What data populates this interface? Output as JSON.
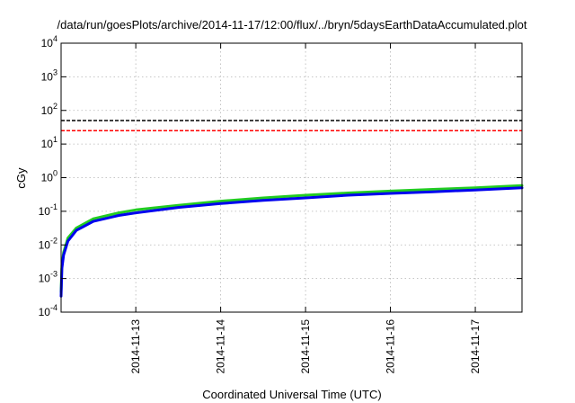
{
  "chart_data": {
    "type": "line",
    "title": "/data/run/goesPlots/archive/2014-11-17/12:00/flux/../bryn/5daysEarthDataAccumulated.plot",
    "xlabel": "Coordinated Universal Time (UTC)",
    "ylabel": "cGy",
    "yscale": "log",
    "ylim": [
      0.0001,
      10000
    ],
    "xlim_days": [
      12.12,
      17.55
    ],
    "grid": true,
    "y_ticks": [
      {
        "base": "10",
        "exp": "-4",
        "value": 0.0001
      },
      {
        "base": "10",
        "exp": "-3",
        "value": 0.001
      },
      {
        "base": "10",
        "exp": "-2",
        "value": 0.01
      },
      {
        "base": "10",
        "exp": "-1",
        "value": 0.1
      },
      {
        "base": "10",
        "exp": "0",
        "value": 1
      },
      {
        "base": "10",
        "exp": "1",
        "value": 10
      },
      {
        "base": "10",
        "exp": "2",
        "value": 100
      },
      {
        "base": "10",
        "exp": "3",
        "value": 1000
      },
      {
        "base": "10",
        "exp": "4",
        "value": 10000
      }
    ],
    "x_ticks": [
      {
        "label": "2014-11-13",
        "day": 13
      },
      {
        "label": "2014-11-14",
        "day": 14
      },
      {
        "label": "2014-11-15",
        "day": 15
      },
      {
        "label": "2014-11-16",
        "day": 16
      },
      {
        "label": "2014-11-17",
        "day": 17
      }
    ],
    "reference_lines": [
      {
        "value": 50,
        "color": "#000000",
        "style": "dashed"
      },
      {
        "value": 25,
        "color": "#ff0000",
        "style": "dashed"
      }
    ],
    "series": [
      {
        "color": "#22cc22",
        "x": [
          12.12,
          12.13,
          12.15,
          12.2,
          12.3,
          12.5,
          12.8,
          13.0,
          13.5,
          14.0,
          14.5,
          15.0,
          15.5,
          16.0,
          16.5,
          17.0,
          17.55
        ],
        "y": [
          0.0004,
          0.0025,
          0.006,
          0.016,
          0.032,
          0.06,
          0.09,
          0.11,
          0.15,
          0.2,
          0.25,
          0.3,
          0.35,
          0.4,
          0.45,
          0.5,
          0.58
        ]
      },
      {
        "color": "#0000ee",
        "x": [
          12.12,
          12.13,
          12.15,
          12.2,
          12.3,
          12.5,
          12.8,
          13.0,
          13.5,
          14.0,
          14.5,
          15.0,
          15.5,
          16.0,
          16.5,
          17.0,
          17.55
        ],
        "y": [
          0.0003,
          0.002,
          0.005,
          0.013,
          0.027,
          0.05,
          0.075,
          0.09,
          0.13,
          0.17,
          0.21,
          0.25,
          0.3,
          0.34,
          0.38,
          0.43,
          0.5
        ]
      }
    ]
  }
}
